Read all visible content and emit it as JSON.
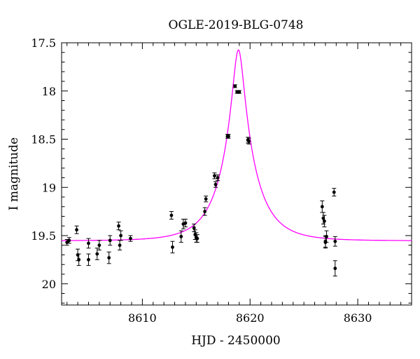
{
  "chart_data": {
    "type": "scatter",
    "title": "OGLE-2019-BLG-0748",
    "xlabel": "HJD - 2450000",
    "ylabel": "I magnitude",
    "xlim": [
      8602.5,
      8635
    ],
    "ylim": [
      17.5,
      20.22
    ],
    "y_inverted": true,
    "xticks": [
      8610,
      8620,
      8630
    ],
    "yticks": [
      17.5,
      18,
      18.5,
      19,
      19.5,
      20
    ],
    "ytick_labels": [
      "17.5",
      "18",
      "18.5",
      "19",
      "19.5",
      "20"
    ],
    "xtick_labels": [
      "8610",
      "8620",
      "8630"
    ],
    "grid": false,
    "colors": {
      "points": "#000000",
      "model": "#ff00ff"
    },
    "model": {
      "name": "",
      "type": "Paczynski point-lens fit (curve)",
      "t0": 8618.92,
      "tE": 3.0,
      "u0": 0.163,
      "baseline_mag": 19.554
    },
    "series": [
      {
        "name": "",
        "x": [
          8603.0,
          8603.2,
          8603.9,
          8604.0,
          8604.1,
          8605.0,
          8605.0,
          8605.8,
          8606.0,
          8606.9,
          8607.0,
          8607.8,
          8607.9,
          8608.0,
          8608.9,
          8612.7,
          8612.8,
          8613.6,
          8613.8,
          8614.0,
          8614.8,
          8614.9,
          8615.0,
          8615.1,
          8615.8,
          8615.9,
          8616.7,
          8616.8,
          8617.0,
          8617.9,
          8618.0,
          8618.6,
          8618.8,
          8619.0,
          8619.8,
          8619.9,
          8626.7,
          8626.8,
          8626.9,
          8627.0,
          8627.0,
          8627.1,
          8627.8,
          8627.9,
          8627.9
        ],
        "y": [
          19.57,
          19.55,
          19.44,
          19.7,
          19.75,
          19.58,
          19.75,
          19.69,
          19.6,
          19.73,
          19.55,
          19.4,
          19.6,
          19.5,
          19.53,
          19.29,
          19.62,
          19.51,
          19.38,
          19.37,
          19.42,
          19.49,
          19.52,
          19.53,
          19.25,
          19.12,
          18.88,
          18.97,
          18.9,
          18.47,
          18.47,
          17.95,
          18.01,
          18.01,
          18.51,
          18.52,
          19.2,
          19.32,
          19.35,
          19.56,
          19.57,
          19.51,
          19.05,
          19.84,
          19.56
        ],
        "yerr": [
          0.03,
          0.03,
          0.04,
          0.06,
          0.06,
          0.05,
          0.06,
          0.06,
          0.05,
          0.06,
          0.05,
          0.04,
          0.05,
          0.05,
          0.03,
          0.04,
          0.06,
          0.06,
          0.05,
          0.04,
          0.04,
          0.05,
          0.05,
          0.04,
          0.04,
          0.03,
          0.03,
          0.03,
          0.03,
          0.02,
          0.02,
          0.015,
          0.015,
          0.015,
          0.03,
          0.03,
          0.06,
          0.06,
          0.06,
          0.06,
          0.06,
          0.06,
          0.04,
          0.08,
          0.05
        ]
      }
    ]
  }
}
